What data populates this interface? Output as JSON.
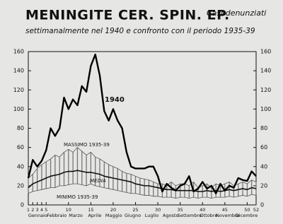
{
  "chart_data": {
    "type": "line",
    "title": "MENINGITE CER. SPIN. EP.",
    "title_note": "Casi denunziati",
    "subtitle": "settimanalmente nel 1940 e confronto con il periodo 1935-39",
    "x": [
      1,
      2,
      3,
      4,
      5,
      6,
      7,
      8,
      9,
      10,
      11,
      12,
      13,
      14,
      15,
      16,
      17,
      18,
      19,
      20,
      21,
      22,
      23,
      24,
      25,
      26,
      27,
      28,
      29,
      30,
      31,
      32,
      33,
      34,
      35,
      36,
      37,
      38,
      39,
      40,
      41,
      42,
      43,
      44,
      45,
      46,
      47,
      48,
      49,
      50,
      51,
      52
    ],
    "xlim": [
      1,
      52
    ],
    "xticks": [
      1,
      2,
      3,
      4,
      5,
      10,
      15,
      20,
      25,
      30,
      35,
      40,
      45,
      50,
      52
    ],
    "month_labels": [
      "Gennaio",
      "Febbraio",
      "Marzo",
      "Aprile",
      "Maggio",
      "Giugno",
      "Luglio",
      "Agosto",
      "Settembre",
      "Ottobre",
      "Novembre",
      "Dicembre"
    ],
    "ylim": [
      0,
      160
    ],
    "yticks": [
      0,
      20,
      40,
      60,
      80,
      100,
      120,
      140,
      160
    ],
    "grid": false,
    "series": [
      {
        "name": "1940",
        "color": "#000000",
        "role": "line",
        "values": [
          28,
          47,
          40,
          46,
          57,
          80,
          72,
          80,
          112,
          100,
          110,
          104,
          124,
          118,
          145,
          157,
          135,
          98,
          88,
          100,
          88,
          80,
          55,
          40,
          38,
          38,
          38,
          40,
          40,
          30,
          14,
          22,
          18,
          15,
          20,
          22,
          30,
          14,
          17,
          24,
          17,
          20,
          12,
          22,
          15,
          20,
          18,
          28,
          26,
          25,
          35,
          30
        ]
      },
      {
        "name": "MASSIMO 1935-39",
        "color": "#555555",
        "role": "max",
        "values": [
          28,
          32,
          38,
          42,
          45,
          48,
          52,
          50,
          55,
          58,
          55,
          60,
          56,
          52,
          55,
          50,
          48,
          45,
          42,
          40,
          38,
          35,
          33,
          32,
          30,
          28,
          27,
          26,
          24,
          22,
          22,
          20,
          24,
          20,
          22,
          22,
          20,
          24,
          18,
          20,
          22,
          18,
          22,
          20,
          22,
          24,
          20,
          22,
          24,
          22,
          26,
          24
        ]
      },
      {
        "name": "MEDIA",
        "color": "#111111",
        "role": "mean",
        "values": [
          18,
          22,
          24,
          26,
          28,
          30,
          31,
          32,
          34,
          35,
          35,
          36,
          35,
          34,
          34,
          33,
          32,
          30,
          29,
          28,
          27,
          26,
          25,
          24,
          22,
          21,
          20,
          20,
          19,
          18,
          17,
          16,
          16,
          15,
          15,
          15,
          15,
          15,
          14,
          14,
          15,
          14,
          15,
          14,
          15,
          16,
          15,
          16,
          17,
          16,
          18,
          17
        ]
      },
      {
        "name": "MINIMO 1935-39",
        "color": "#555555",
        "role": "min",
        "values": [
          12,
          14,
          15,
          16,
          17,
          18,
          18,
          20,
          20,
          21,
          22,
          22,
          21,
          20,
          22,
          20,
          19,
          18,
          17,
          16,
          15,
          14,
          13,
          12,
          12,
          11,
          10,
          10,
          9,
          9,
          8,
          8,
          8,
          7,
          8,
          8,
          7,
          8,
          7,
          8,
          8,
          7,
          8,
          8,
          8,
          9,
          8,
          9,
          10,
          9,
          11,
          10
        ]
      }
    ]
  }
}
